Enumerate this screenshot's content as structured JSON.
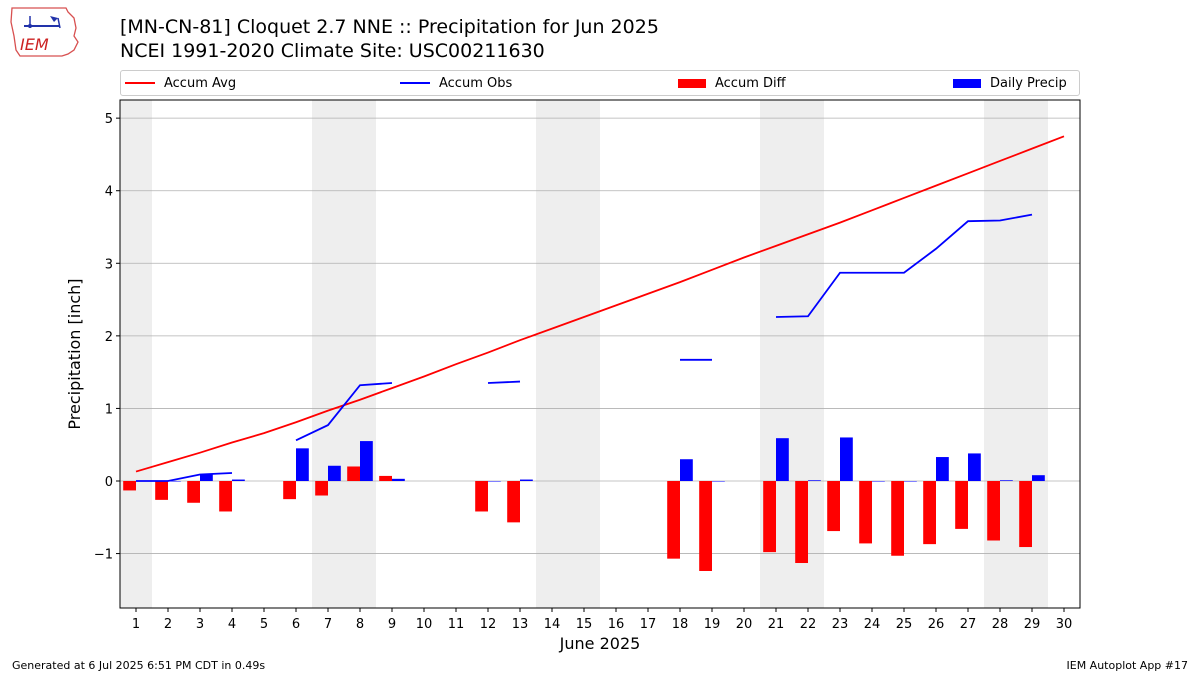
{
  "header": {
    "title_line1": "[MN-CN-81] Cloquet 2.7 NNE :: Precipitation for Jun 2025",
    "title_line2": "NCEI 1991-2020 Climate Site: USC00211630",
    "logo_text": "IEM"
  },
  "footer": {
    "left": "Generated at 6 Jul 2025 6:51 PM CDT in 0.49s",
    "right": "IEM Autoplot App #17"
  },
  "colors": {
    "accum_avg": "#ff0000",
    "accum_obs": "#0000ff",
    "accum_diff": "#ff0000",
    "daily_precip": "#0000ff",
    "weekend_shade": "#eeeeee",
    "grid": "#b0b0b0"
  },
  "chart_data": {
    "type": "bar",
    "xlabel": "June 2025",
    "ylabel": "Precipitation [inch]",
    "xlim": [
      0.5,
      30.5
    ],
    "ylim": [
      -1.75,
      5.25
    ],
    "yticks": [
      -1,
      0,
      1,
      2,
      3,
      4,
      5
    ],
    "ytick_labels": [
      "−1",
      "0",
      "1",
      "2",
      "3",
      "4",
      "5"
    ],
    "grid": "horizontal",
    "legend_position": "top",
    "days": [
      1,
      2,
      3,
      4,
      5,
      6,
      7,
      8,
      9,
      10,
      11,
      12,
      13,
      14,
      15,
      16,
      17,
      18,
      19,
      20,
      21,
      22,
      23,
      24,
      25,
      26,
      27,
      28,
      29,
      30
    ],
    "shaded_days": [
      [
        0.5,
        1.5
      ],
      [
        6.5,
        8.5
      ],
      [
        13.5,
        15.5
      ],
      [
        20.5,
        22.5
      ],
      [
        27.5,
        29.5
      ]
    ],
    "series": [
      {
        "name": "Accum Avg",
        "kind": "line",
        "values": [
          0.13,
          0.26,
          0.39,
          0.53,
          0.66,
          0.81,
          0.97,
          1.12,
          1.28,
          1.44,
          1.61,
          1.77,
          1.94,
          2.1,
          2.26,
          2.42,
          2.58,
          2.74,
          2.91,
          3.08,
          3.24,
          3.4,
          3.56,
          3.73,
          3.9,
          4.07,
          4.24,
          4.41,
          4.58,
          4.75
        ]
      },
      {
        "name": "Accum Obs",
        "kind": "line",
        "values": [
          0.0,
          0.0,
          0.09,
          0.11,
          null,
          0.56,
          0.77,
          1.32,
          1.35,
          null,
          null,
          1.35,
          1.37,
          null,
          null,
          null,
          null,
          1.67,
          1.67,
          null,
          2.26,
          2.27,
          2.87,
          2.87,
          2.87,
          3.2,
          3.58,
          3.59,
          3.67,
          null
        ]
      },
      {
        "name": "Accum Diff",
        "kind": "bar",
        "values": [
          -0.13,
          -0.26,
          -0.3,
          -0.42,
          null,
          -0.25,
          -0.2,
          0.2,
          0.07,
          null,
          null,
          -0.42,
          -0.57,
          null,
          null,
          null,
          null,
          -1.07,
          -1.24,
          null,
          -0.98,
          -1.13,
          -0.69,
          -0.86,
          -1.03,
          -0.87,
          -0.66,
          -0.82,
          -0.91,
          null
        ]
      },
      {
        "name": "Daily Precip",
        "kind": "bar",
        "values": [
          0.0,
          0.0,
          0.09,
          0.02,
          null,
          0.45,
          0.21,
          0.55,
          0.03,
          null,
          null,
          0.0,
          0.02,
          null,
          null,
          null,
          null,
          0.3,
          0.0,
          null,
          0.59,
          0.01,
          0.6,
          0.0,
          0.0,
          0.33,
          0.38,
          0.01,
          0.08,
          null
        ]
      }
    ]
  }
}
